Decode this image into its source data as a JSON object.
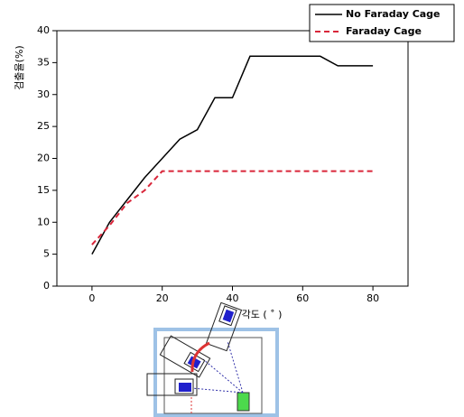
{
  "chart_data": {
    "type": "line",
    "x_label": "각도 ( ˚ )",
    "y_label": "검출율(%)",
    "x": [
      0,
      5,
      10,
      15,
      20,
      25,
      30,
      35,
      40,
      45,
      50,
      55,
      60,
      65,
      70,
      75,
      80
    ],
    "series": [
      {
        "name": "No Faraday Cage",
        "color": "#000000",
        "dashed": false,
        "values": [
          5,
          10,
          13.5,
          17,
          20,
          23,
          24.5,
          29.5,
          29.5,
          36,
          36,
          36,
          36,
          36,
          34.5,
          34.5,
          34.5
        ]
      },
      {
        "name": "Faraday Cage",
        "color": "#d9263a",
        "dashed": true,
        "values": [
          6.5,
          9.5,
          13,
          15,
          18,
          18,
          18,
          18,
          18,
          18,
          18,
          18,
          18,
          18,
          18,
          18,
          18
        ]
      }
    ],
    "xlim": [
      -10,
      90
    ],
    "xticks": [
      0,
      20,
      40,
      60,
      80
    ],
    "ylim": [
      0,
      40
    ],
    "yticks": [
      0,
      5,
      10,
      15,
      20,
      25,
      30,
      35,
      40
    ],
    "legend": "upper right"
  }
}
